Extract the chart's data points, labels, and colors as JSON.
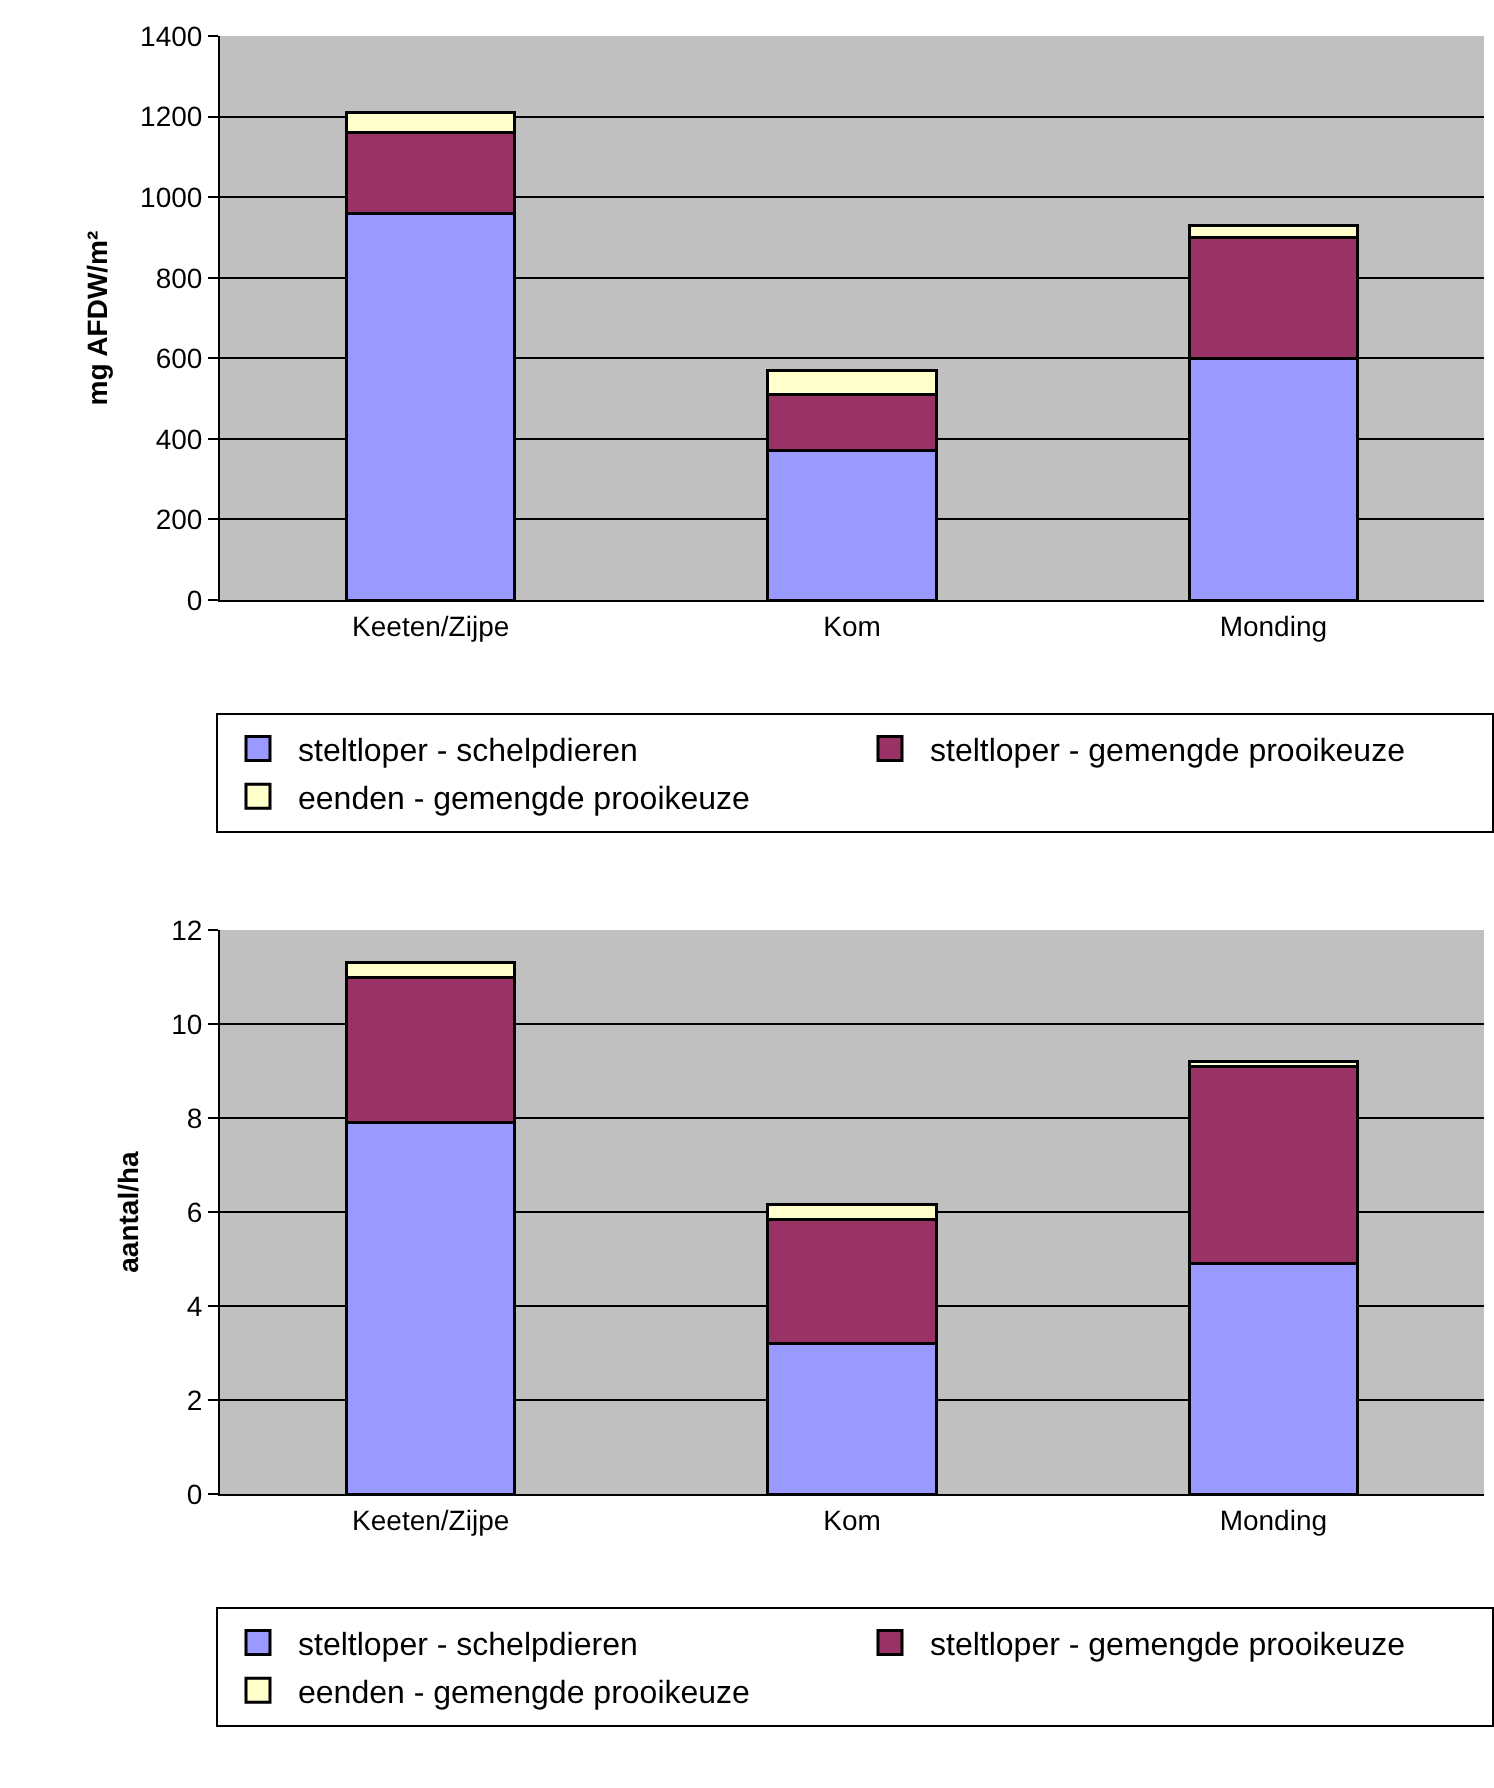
{
  "chart_data": [
    {
      "type": "bar",
      "stacked": true,
      "ylabel": "mg AFDW/m²",
      "categories": [
        "Keeten/Zijpe",
        "Kom",
        "Monding"
      ],
      "ylim": [
        0,
        1400
      ],
      "yticks": [
        0,
        200,
        400,
        600,
        800,
        1000,
        1200,
        1400
      ],
      "grid": "y",
      "legend": "bottom",
      "series": [
        {
          "name": "steltloper - schelpdieren",
          "color": "#9999ff",
          "values": [
            960,
            370,
            600
          ]
        },
        {
          "name": "steltloper - gemengde prooikeuze",
          "color": "#993366",
          "values": [
            200,
            140,
            300
          ]
        },
        {
          "name": "eenden - gemengde prooikeuze",
          "color": "#ffffcc",
          "values": [
            50,
            60,
            30
          ]
        }
      ]
    },
    {
      "type": "bar",
      "stacked": true,
      "ylabel": "aantal/ha",
      "categories": [
        "Keeten/Zijpe",
        "Kom",
        "Monding"
      ],
      "ylim": [
        0,
        12
      ],
      "yticks": [
        0,
        2,
        4,
        6,
        8,
        10,
        12
      ],
      "grid": "y",
      "legend": "bottom",
      "series": [
        {
          "name": "steltloper - schelpdieren",
          "color": "#9999ff",
          "values": [
            7.9,
            3.2,
            4.9
          ]
        },
        {
          "name": "steltloper - gemengde prooikeuze",
          "color": "#993366",
          "values": [
            3.1,
            2.65,
            4.2
          ]
        },
        {
          "name": "eenden - gemengde prooikeuze",
          "color": "#ffffcc",
          "values": [
            0.3,
            0.3,
            0.1
          ]
        }
      ]
    }
  ]
}
